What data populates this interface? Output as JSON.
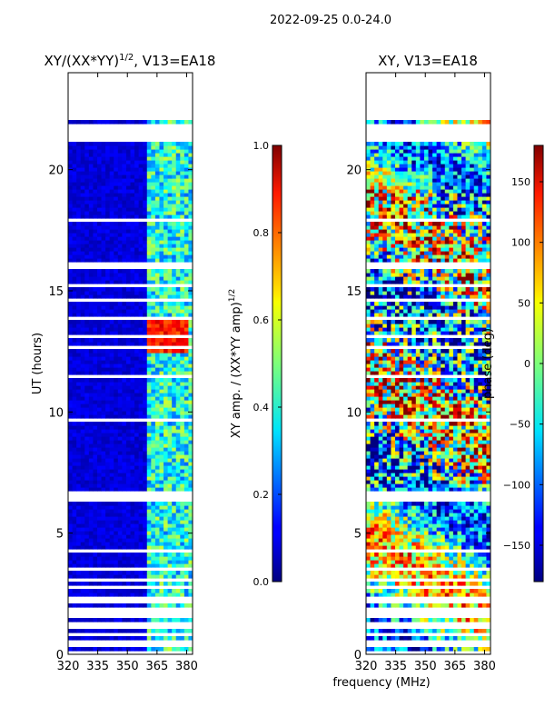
{
  "suptitle": "2022-09-25 0.0-24.0",
  "xlabel_shared": "frequency (MHz)",
  "panel1": {
    "title_base": "XY/(XX*YY)",
    "title_sup": "1/2",
    "title_tail": ", V13=EA18"
  },
  "panel2": {
    "title": "XY, V13=EA18"
  },
  "cbar1": {
    "label_base": "XY amp. / (XX*YY amp)",
    "label_sup": "1/2",
    "ticks": [
      "0.0",
      "0.2",
      "0.4",
      "0.6",
      "0.8",
      "1.0"
    ]
  },
  "cbar2": {
    "label": "phase (deg)",
    "ticks": [
      "−150",
      "−100",
      "−50",
      "0",
      "50",
      "100",
      "150"
    ]
  },
  "chart_data": [
    {
      "type": "heatmap",
      "title": "XY/(XX*YY)^1/2, V13=EA18",
      "xlabel": "",
      "ylabel": "UT (hours)",
      "xlim": [
        320,
        383
      ],
      "ylim": [
        0,
        24
      ],
      "xticks": [
        320,
        335,
        350,
        365,
        380
      ],
      "yticks": [
        0,
        5,
        10,
        15,
        20
      ],
      "colorbar": {
        "label": "XY amp. / (XX*YY amp)^1/2",
        "range": [
          0.0,
          1.0
        ],
        "colormap": "jet"
      },
      "dominant_value": 0.05,
      "high_region": {
        "x_range": [
          360,
          383
        ],
        "value": 0.4
      },
      "peak_region": {
        "x_range": [
          360,
          380
        ],
        "y_range": [
          12.5,
          14.0
        ],
        "value": 0.85
      }
    },
    {
      "type": "heatmap",
      "title": "XY, V13=EA18",
      "xlabel": "frequency (MHz)",
      "ylabel": "",
      "xlim": [
        320,
        383
      ],
      "ylim": [
        0,
        24
      ],
      "xticks": [
        320,
        335,
        350,
        365,
        380
      ],
      "yticks": [
        0,
        5,
        10,
        15,
        20
      ],
      "colorbar": {
        "label": "phase (deg)",
        "range": [
          -180,
          180
        ],
        "colormap": "jet"
      },
      "value_range": [
        -180,
        180
      ]
    }
  ],
  "colors": {
    "axes": "#000000",
    "background": "#ffffff",
    "flagged": "#ffffff"
  }
}
